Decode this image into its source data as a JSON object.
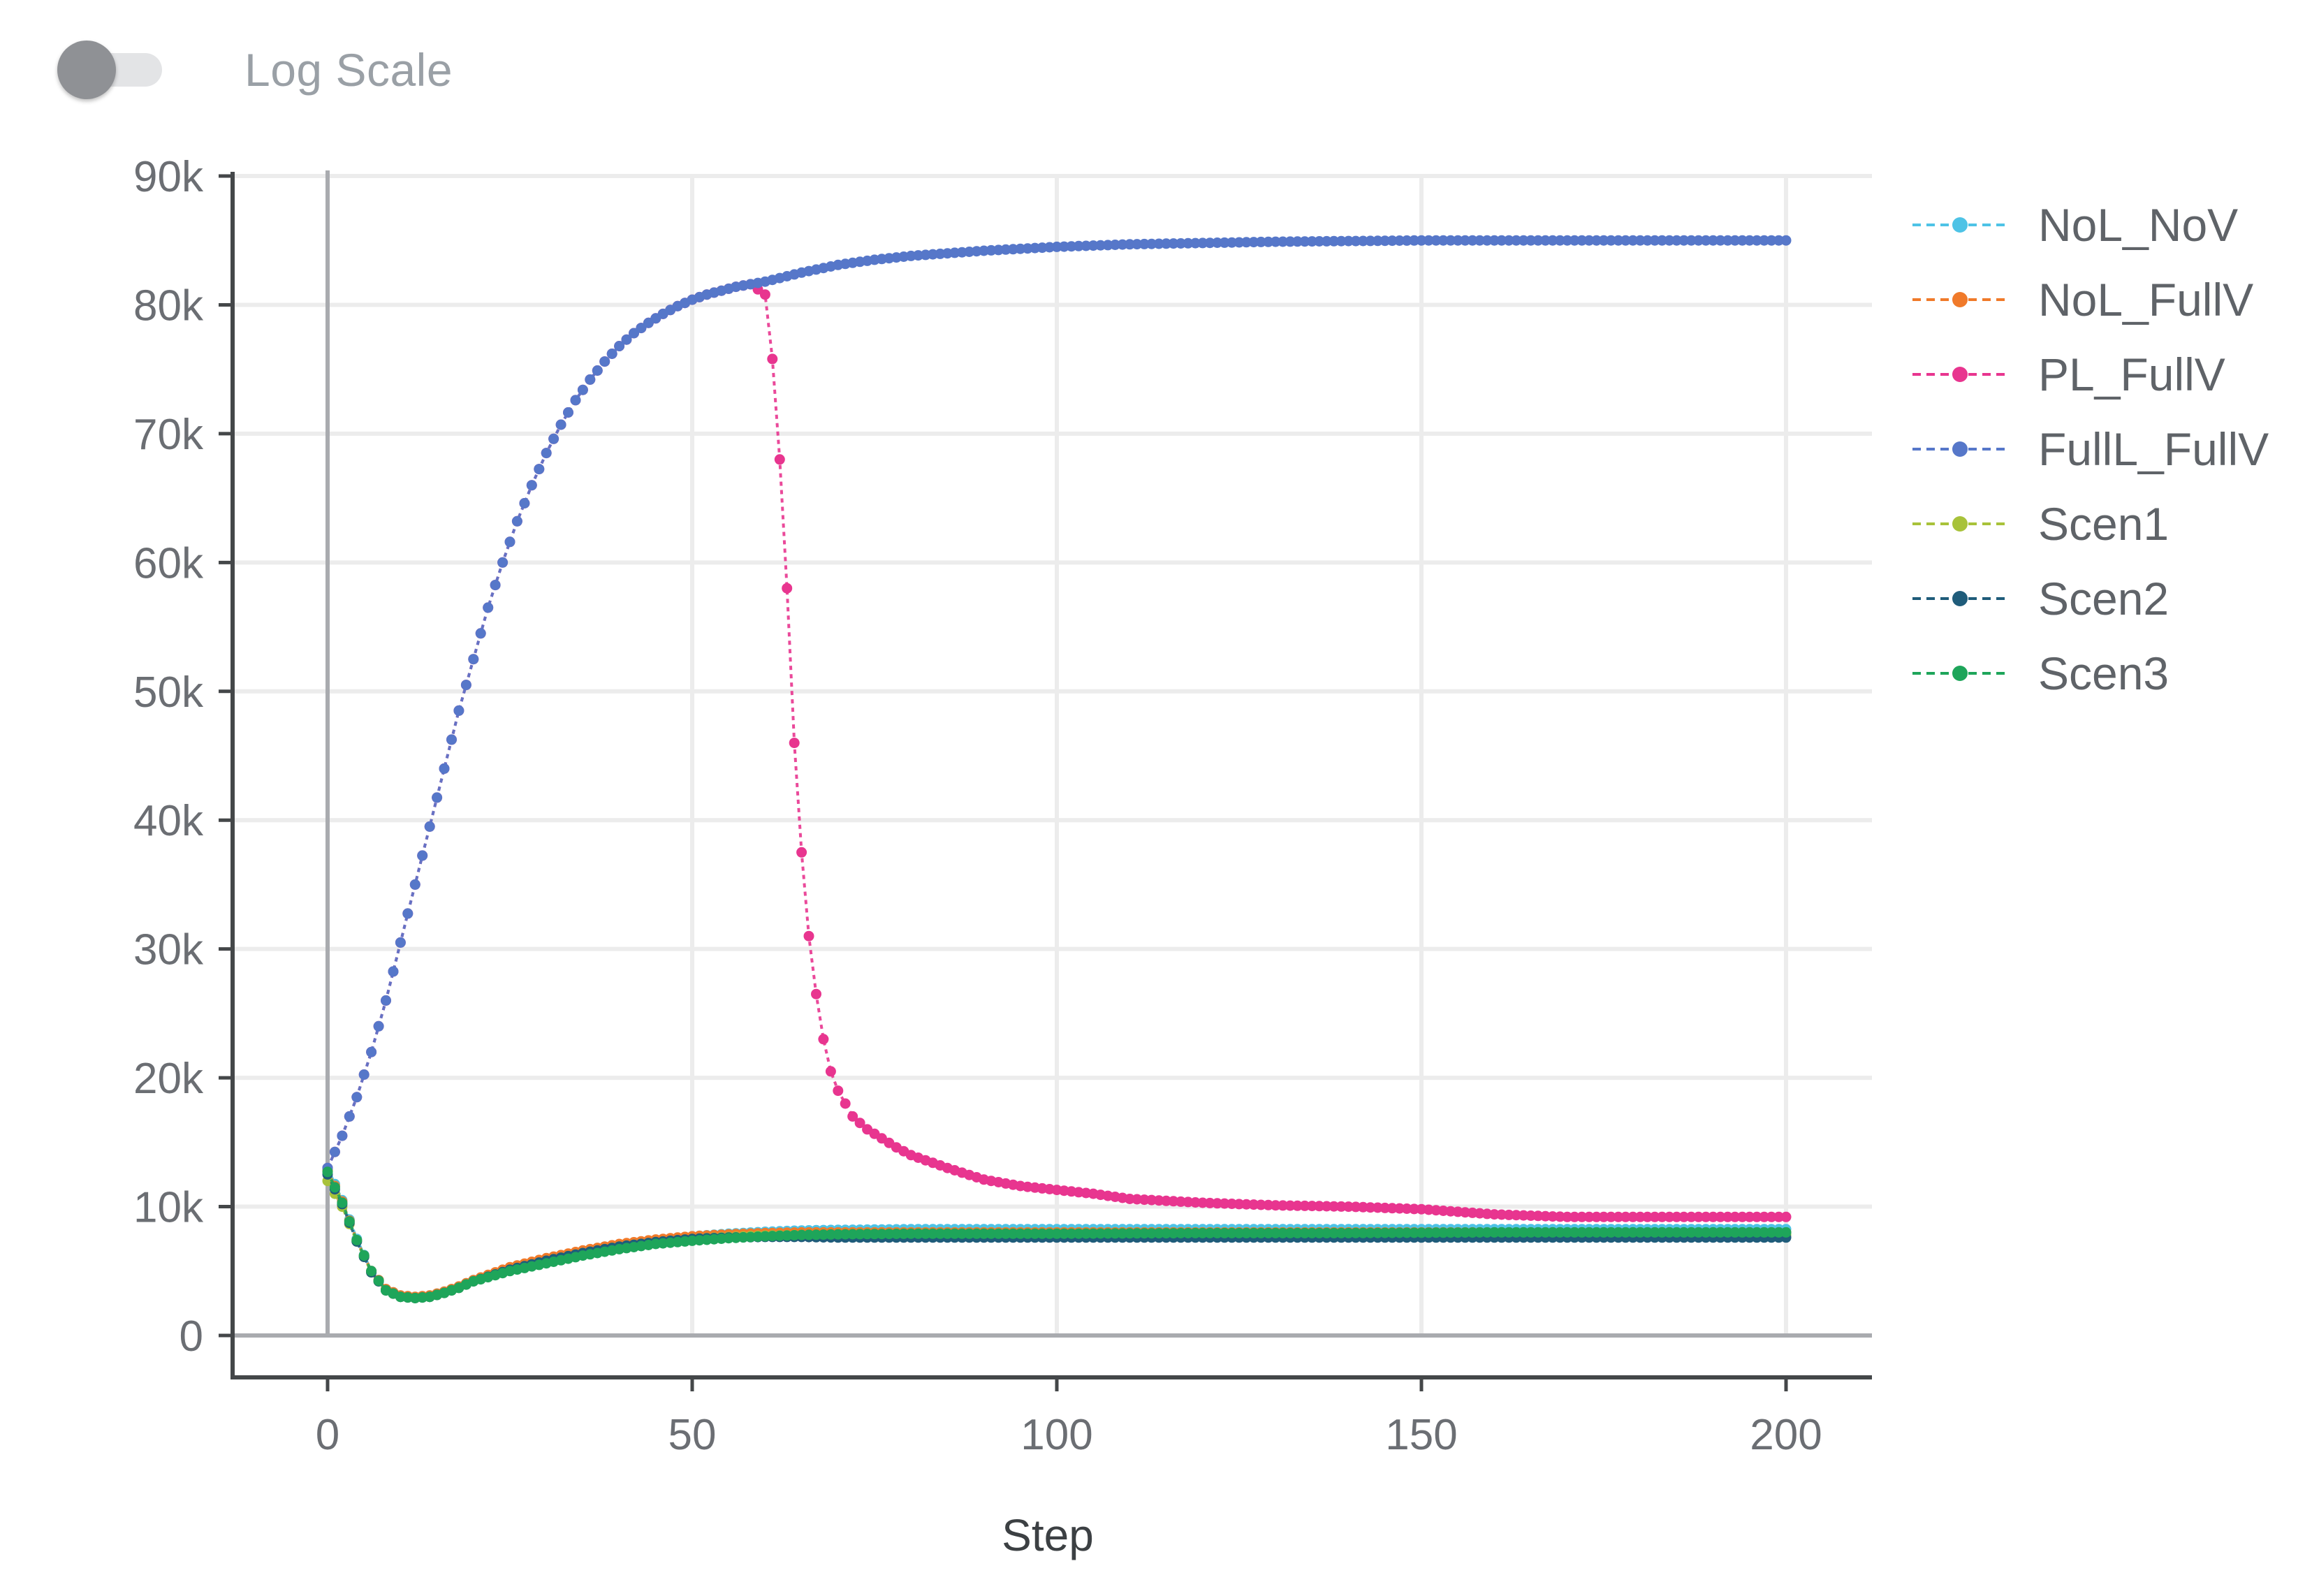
{
  "controls": {
    "log_scale_label": "Log Scale",
    "log_scale_on": false
  },
  "chart_data": {
    "type": "line",
    "title": "",
    "xlabel": "Step",
    "ylabel": "",
    "xlim": [
      0,
      200
    ],
    "ylim": [
      0,
      90000
    ],
    "x_ticks": [
      0,
      50,
      100,
      150,
      200
    ],
    "x_tick_labels": [
      "0",
      "50",
      "100",
      "150",
      "200"
    ],
    "y_ticks": [
      0,
      10000,
      20000,
      30000,
      40000,
      50000,
      60000,
      70000,
      80000,
      90000
    ],
    "y_tick_labels": [
      "0",
      "10k",
      "20k",
      "30k",
      "40k",
      "50k",
      "60k",
      "70k",
      "80k",
      "90k"
    ],
    "grid": true,
    "legend_position": "right",
    "series": [
      {
        "name": "NoL_NoV",
        "color": "#4ec3e6",
        "points": [
          [
            0,
            13000
          ],
          [
            2,
            10500
          ],
          [
            4,
            7500
          ],
          [
            6,
            5000
          ],
          [
            8,
            3600
          ],
          [
            10,
            3100
          ],
          [
            12,
            3000
          ],
          [
            14,
            3100
          ],
          [
            16,
            3400
          ],
          [
            18,
            3800
          ],
          [
            20,
            4300
          ],
          [
            25,
            5200
          ],
          [
            30,
            5900
          ],
          [
            35,
            6500
          ],
          [
            40,
            7000
          ],
          [
            45,
            7400
          ],
          [
            50,
            7700
          ],
          [
            55,
            7900
          ],
          [
            60,
            8050
          ],
          [
            65,
            8150
          ],
          [
            70,
            8200
          ],
          [
            80,
            8250
          ],
          [
            90,
            8250
          ],
          [
            100,
            8250
          ],
          [
            120,
            8250
          ],
          [
            140,
            8250
          ],
          [
            160,
            8250
          ],
          [
            180,
            8250
          ],
          [
            200,
            8250
          ]
        ]
      },
      {
        "name": "NoL_FullV",
        "color": "#f07a2a",
        "points": [
          [
            0,
            12800
          ],
          [
            2,
            10400
          ],
          [
            4,
            7400
          ],
          [
            6,
            5000
          ],
          [
            8,
            3600
          ],
          [
            10,
            3100
          ],
          [
            12,
            3000
          ],
          [
            14,
            3100
          ],
          [
            16,
            3400
          ],
          [
            18,
            3800
          ],
          [
            20,
            4300
          ],
          [
            25,
            5300
          ],
          [
            30,
            6000
          ],
          [
            35,
            6600
          ],
          [
            40,
            7100
          ],
          [
            45,
            7450
          ],
          [
            50,
            7700
          ],
          [
            55,
            7850
          ],
          [
            60,
            7950
          ],
          [
            65,
            8000
          ],
          [
            70,
            8000
          ],
          [
            80,
            8000
          ],
          [
            90,
            8000
          ],
          [
            100,
            8000
          ],
          [
            120,
            8000
          ],
          [
            140,
            8000
          ],
          [
            160,
            8000
          ],
          [
            180,
            8000
          ],
          [
            200,
            8000
          ]
        ]
      },
      {
        "name": "PL_FullV",
        "color": "#e8358f",
        "points": [
          [
            0,
            13000
          ],
          [
            2,
            15500
          ],
          [
            4,
            18500
          ],
          [
            6,
            22000
          ],
          [
            8,
            26000
          ],
          [
            10,
            30500
          ],
          [
            12,
            35000
          ],
          [
            14,
            39500
          ],
          [
            16,
            44000
          ],
          [
            18,
            48500
          ],
          [
            20,
            52500
          ],
          [
            22,
            56500
          ],
          [
            24,
            60000
          ],
          [
            26,
            63200
          ],
          [
            28,
            66000
          ],
          [
            30,
            68500
          ],
          [
            32,
            70700
          ],
          [
            34,
            72600
          ],
          [
            36,
            74200
          ],
          [
            38,
            75600
          ],
          [
            40,
            76800
          ],
          [
            42,
            77800
          ],
          [
            44,
            78600
          ],
          [
            46,
            79300
          ],
          [
            48,
            79900
          ],
          [
            50,
            80400
          ],
          [
            52,
            80800
          ],
          [
            54,
            81100
          ],
          [
            56,
            81400
          ],
          [
            58,
            81600
          ],
          [
            60,
            80800
          ],
          [
            61,
            75800
          ],
          [
            62,
            68000
          ],
          [
            63,
            58000
          ],
          [
            64,
            46000
          ],
          [
            65,
            37500
          ],
          [
            66,
            31000
          ],
          [
            67,
            26500
          ],
          [
            68,
            23000
          ],
          [
            69,
            20500
          ],
          [
            70,
            19000
          ],
          [
            72,
            17000
          ],
          [
            74,
            16000
          ],
          [
            76,
            15300
          ],
          [
            78,
            14600
          ],
          [
            80,
            14000
          ],
          [
            85,
            13000
          ],
          [
            90,
            12100
          ],
          [
            95,
            11600
          ],
          [
            100,
            11300
          ],
          [
            105,
            11000
          ],
          [
            110,
            10600
          ],
          [
            120,
            10300
          ],
          [
            130,
            10100
          ],
          [
            140,
            10000
          ],
          [
            150,
            9800
          ],
          [
            160,
            9400
          ],
          [
            170,
            9200
          ],
          [
            180,
            9200
          ],
          [
            190,
            9200
          ],
          [
            200,
            9200
          ]
        ]
      },
      {
        "name": "FullL_FullV",
        "color": "#5677c9",
        "points": [
          [
            0,
            13000
          ],
          [
            2,
            15500
          ],
          [
            4,
            18500
          ],
          [
            6,
            22000
          ],
          [
            8,
            26000
          ],
          [
            10,
            30500
          ],
          [
            12,
            35000
          ],
          [
            14,
            39500
          ],
          [
            16,
            44000
          ],
          [
            18,
            48500
          ],
          [
            20,
            52500
          ],
          [
            22,
            56500
          ],
          [
            24,
            60000
          ],
          [
            26,
            63200
          ],
          [
            28,
            66000
          ],
          [
            30,
            68500
          ],
          [
            32,
            70700
          ],
          [
            34,
            72600
          ],
          [
            36,
            74200
          ],
          [
            38,
            75600
          ],
          [
            40,
            76800
          ],
          [
            42,
            77800
          ],
          [
            44,
            78600
          ],
          [
            46,
            79300
          ],
          [
            48,
            79900
          ],
          [
            50,
            80400
          ],
          [
            52,
            80800
          ],
          [
            54,
            81100
          ],
          [
            56,
            81400
          ],
          [
            58,
            81600
          ],
          [
            60,
            81800
          ],
          [
            65,
            82500
          ],
          [
            70,
            83100
          ],
          [
            75,
            83500
          ],
          [
            80,
            83800
          ],
          [
            90,
            84200
          ],
          [
            100,
            84500
          ],
          [
            110,
            84700
          ],
          [
            120,
            84800
          ],
          [
            130,
            84900
          ],
          [
            140,
            84950
          ],
          [
            150,
            85000
          ],
          [
            160,
            85000
          ],
          [
            170,
            85000
          ],
          [
            180,
            85000
          ],
          [
            190,
            85000
          ],
          [
            200,
            85000
          ]
        ]
      },
      {
        "name": "Scen1",
        "color": "#a8c23a",
        "points": [
          [
            0,
            12000
          ],
          [
            2,
            10000
          ],
          [
            4,
            7300
          ],
          [
            6,
            4900
          ],
          [
            8,
            3500
          ],
          [
            10,
            3000
          ],
          [
            12,
            2900
          ],
          [
            14,
            3000
          ],
          [
            16,
            3300
          ],
          [
            18,
            3700
          ],
          [
            20,
            4200
          ],
          [
            25,
            5100
          ],
          [
            30,
            5800
          ],
          [
            35,
            6400
          ],
          [
            40,
            6900
          ],
          [
            45,
            7250
          ],
          [
            50,
            7500
          ],
          [
            55,
            7650
          ],
          [
            60,
            7750
          ],
          [
            65,
            7800
          ],
          [
            70,
            7800
          ],
          [
            80,
            7800
          ],
          [
            90,
            7800
          ],
          [
            100,
            7800
          ],
          [
            120,
            7800
          ],
          [
            140,
            7800
          ],
          [
            160,
            7800
          ],
          [
            180,
            7800
          ],
          [
            200,
            7800
          ]
        ]
      },
      {
        "name": "Scen2",
        "color": "#1f5c7a",
        "points": [
          [
            0,
            12500
          ],
          [
            2,
            10200
          ],
          [
            4,
            7300
          ],
          [
            6,
            4900
          ],
          [
            8,
            3500
          ],
          [
            10,
            3000
          ],
          [
            12,
            2900
          ],
          [
            14,
            3000
          ],
          [
            16,
            3300
          ],
          [
            18,
            3700
          ],
          [
            20,
            4200
          ],
          [
            25,
            5100
          ],
          [
            30,
            5800
          ],
          [
            35,
            6400
          ],
          [
            40,
            6900
          ],
          [
            45,
            7250
          ],
          [
            50,
            7500
          ],
          [
            55,
            7600
          ],
          [
            60,
            7650
          ],
          [
            65,
            7650
          ],
          [
            70,
            7600
          ],
          [
            80,
            7600
          ],
          [
            90,
            7600
          ],
          [
            100,
            7600
          ],
          [
            120,
            7600
          ],
          [
            140,
            7600
          ],
          [
            160,
            7600
          ],
          [
            180,
            7600
          ],
          [
            200,
            7600
          ]
        ]
      },
      {
        "name": "Scen3",
        "color": "#1ea55a",
        "points": [
          [
            0,
            12700
          ],
          [
            2,
            10300
          ],
          [
            4,
            7400
          ],
          [
            6,
            5000
          ],
          [
            8,
            3500
          ],
          [
            10,
            3000
          ],
          [
            12,
            2900
          ],
          [
            14,
            3000
          ],
          [
            16,
            3300
          ],
          [
            18,
            3700
          ],
          [
            20,
            4200
          ],
          [
            25,
            5000
          ],
          [
            30,
            5600
          ],
          [
            35,
            6200
          ],
          [
            40,
            6700
          ],
          [
            45,
            7100
          ],
          [
            50,
            7350
          ],
          [
            55,
            7550
          ],
          [
            60,
            7700
          ],
          [
            65,
            7800
          ],
          [
            70,
            7850
          ],
          [
            80,
            7900
          ],
          [
            90,
            7900
          ],
          [
            100,
            7900
          ],
          [
            120,
            7950
          ],
          [
            140,
            7950
          ],
          [
            160,
            8000
          ],
          [
            180,
            8000
          ],
          [
            200,
            8000
          ]
        ]
      }
    ]
  }
}
